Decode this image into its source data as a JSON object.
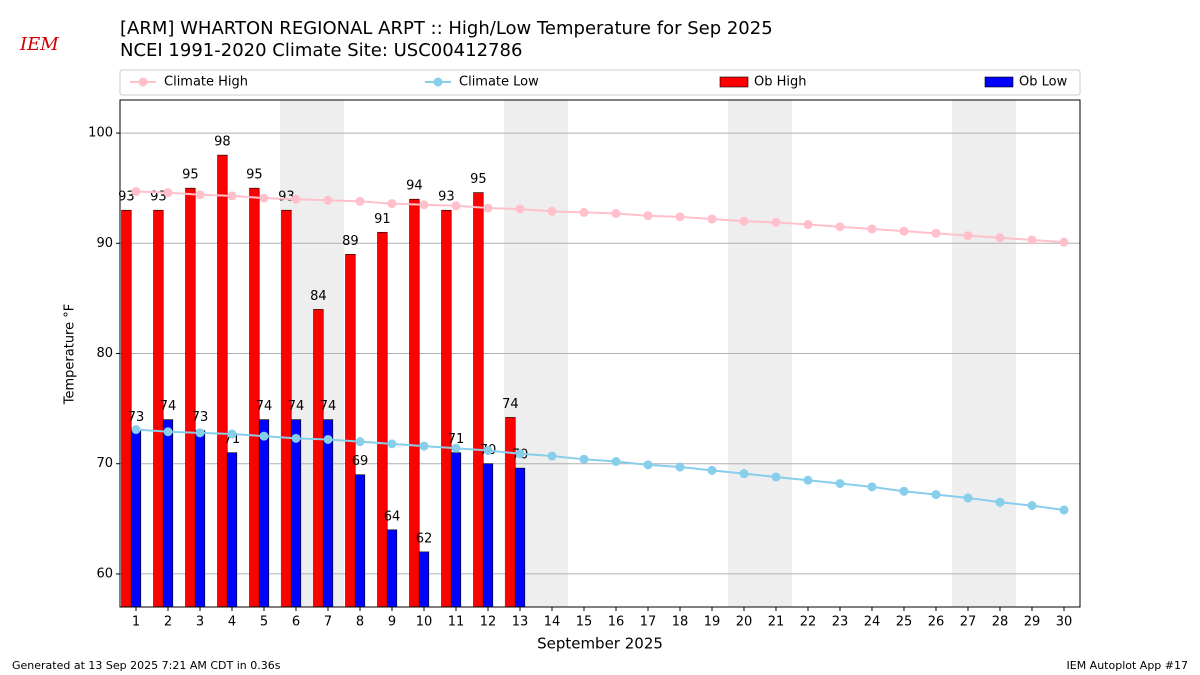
{
  "chart_data": {
    "type": "bar_line",
    "title": "[ARM] WHARTON REGIONAL ARPT :: High/Low Temperature for Sep 2025",
    "subtitle": "NCEI 1991-2020 Climate Site: USC00412786",
    "logo_text": "IEM",
    "xlabel": "September 2025",
    "ylabel": "Temperature °F",
    "footer_left": "Generated at 13 Sep 2025 7:21 AM CDT in 0.36s",
    "footer_right": "IEM Autoplot App #17",
    "x": [
      1,
      2,
      3,
      4,
      5,
      6,
      7,
      8,
      9,
      10,
      11,
      12,
      13,
      14,
      15,
      16,
      17,
      18,
      19,
      20,
      21,
      22,
      23,
      24,
      25,
      26,
      27,
      28,
      29,
      30
    ],
    "xlim": [
      0.5,
      30.5
    ],
    "xticks": [
      1,
      2,
      3,
      4,
      5,
      6,
      7,
      8,
      9,
      10,
      11,
      12,
      13,
      14,
      15,
      16,
      17,
      18,
      19,
      20,
      21,
      22,
      23,
      24,
      25,
      26,
      27,
      28,
      29,
      30
    ],
    "ylim": [
      57,
      103
    ],
    "yticks": [
      60,
      70,
      80,
      90,
      100
    ],
    "grid": true,
    "highlight_spans": [
      [
        5.5,
        7.5
      ],
      [
        12.5,
        14.5
      ],
      [
        19.5,
        21.5
      ],
      [
        26.5,
        28.5
      ]
    ],
    "series": [
      {
        "name": "Climate High",
        "kind": "line",
        "color": "#ffc0cb",
        "values": [
          94.7,
          94.6,
          94.4,
          94.3,
          94.1,
          94.0,
          93.9,
          93.8,
          93.6,
          93.5,
          93.4,
          93.2,
          93.1,
          92.9,
          92.8,
          92.7,
          92.5,
          92.4,
          92.2,
          92.0,
          91.9,
          91.7,
          91.5,
          91.3,
          91.1,
          90.9,
          90.7,
          90.5,
          90.3,
          90.1
        ]
      },
      {
        "name": "Climate Low",
        "kind": "line",
        "color": "#87ceeb",
        "values": [
          73.1,
          72.9,
          72.8,
          72.7,
          72.5,
          72.3,
          72.2,
          72.0,
          71.8,
          71.6,
          71.4,
          71.2,
          70.9,
          70.7,
          70.4,
          70.2,
          69.9,
          69.7,
          69.4,
          69.1,
          68.8,
          68.5,
          68.2,
          67.9,
          67.5,
          67.2,
          66.9,
          66.5,
          66.2,
          65.8
        ]
      },
      {
        "name": "Ob High",
        "kind": "bar",
        "color": "#ff0000",
        "values": [
          93,
          93,
          95,
          98,
          95,
          93,
          84,
          89,
          91,
          94,
          93,
          94.6,
          74.2,
          null,
          null,
          null,
          null,
          null,
          null,
          null,
          null,
          null,
          null,
          null,
          null,
          null,
          null,
          null,
          null,
          null
        ],
        "value_labels": [
          "93",
          "93",
          "95",
          "98",
          "95",
          "93",
          "84",
          "89",
          "91",
          "94",
          "93",
          "95",
          "74",
          null,
          null,
          null,
          null,
          null,
          null,
          null,
          null,
          null,
          null,
          null,
          null,
          null,
          null,
          null,
          null,
          null
        ]
      },
      {
        "name": "Ob Low",
        "kind": "bar",
        "color": "#0000ff",
        "values": [
          73,
          74,
          73,
          71,
          74,
          74,
          74,
          69,
          64,
          62,
          71,
          70,
          69.6,
          null,
          null,
          null,
          null,
          null,
          null,
          null,
          null,
          null,
          null,
          null,
          null,
          null,
          null,
          null,
          null,
          null
        ],
        "value_labels": [
          "73",
          "74",
          "73",
          "71",
          "74",
          "74",
          "74",
          "69",
          "64",
          "62",
          "71",
          "70",
          "70",
          null,
          null,
          null,
          null,
          null,
          null,
          null,
          null,
          null,
          null,
          null,
          null,
          null,
          null,
          null,
          null,
          null
        ]
      }
    ]
  }
}
